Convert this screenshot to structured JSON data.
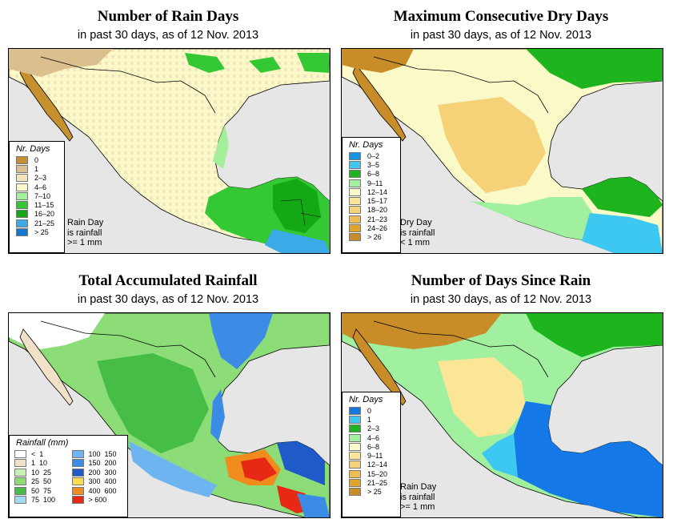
{
  "panels": [
    {
      "id": "rain_days",
      "title": "Number of Rain Days",
      "subtitle": "in past 30 days, as of  12 Nov. 2013",
      "legend_title": "Nr. Days",
      "legend": [
        {
          "label": "0",
          "color": "#c6902e"
        },
        {
          "label": "1",
          "color": "#dcbf8e"
        },
        {
          "label": "2–3",
          "color": "#f4e4be"
        },
        {
          "label": "4–6",
          "color": "#fafac8"
        },
        {
          "label": "7–10",
          "color": "#a4f09a"
        },
        {
          "label": "11–15",
          "color": "#34c834"
        },
        {
          "label": "16–20",
          "color": "#14a814"
        },
        {
          "label": "21–25",
          "color": "#3caae6"
        },
        {
          "label": "> 25",
          "color": "#1478d2"
        }
      ],
      "note": [
        "Rain Day",
        "is rainfall",
        ">= 1 mm"
      ]
    },
    {
      "id": "dry_days",
      "title": "Maximum Consecutive Dry Days",
      "subtitle": "in past 30 days, as of  12 Nov. 2013",
      "legend_title": "Nr. Days",
      "legend": [
        {
          "label": "0–2",
          "color": "#1496e6"
        },
        {
          "label": "3–5",
          "color": "#3cc8f0"
        },
        {
          "label": "6–8",
          "color": "#1eb41e"
        },
        {
          "label": "9–11",
          "color": "#a0f0a0"
        },
        {
          "label": "12–14",
          "color": "#fafac8"
        },
        {
          "label": "15–17",
          "color": "#fae696"
        },
        {
          "label": "18–20",
          "color": "#f5d278"
        },
        {
          "label": "21–23",
          "color": "#f0be50"
        },
        {
          "label": "24–26",
          "color": "#e1a528"
        },
        {
          "label": "> 26",
          "color": "#c88c28"
        }
      ],
      "note": [
        "Dry Day",
        "is rainfall",
        "< 1 mm"
      ]
    },
    {
      "id": "total_rainfall",
      "title": "Total Accumulated Rainfall",
      "subtitle": "in past 30 days, as of  12 Nov. 2013",
      "legend_title": "Rainfall (mm)",
      "legend_left": [
        {
          "label": "<  1",
          "color": "#ffffff"
        },
        {
          "label": "1  10",
          "color": "#f0e1c8"
        },
        {
          "label": "10  25",
          "color": "#c8f0b4"
        },
        {
          "label": "25  50",
          "color": "#8cdc78"
        },
        {
          "label": "50  75",
          "color": "#46be46"
        },
        {
          "label": "75  100",
          "color": "#a0dcf0"
        }
      ],
      "legend_right": [
        {
          "label": "100  150",
          "color": "#6eb4f0"
        },
        {
          "label": "150  200",
          "color": "#3c8ce6"
        },
        {
          "label": "200  300",
          "color": "#1e5ac8"
        },
        {
          "label": "300  400",
          "color": "#fadc50"
        },
        {
          "label": "400  600",
          "color": "#f08c1e"
        },
        {
          "label": "> 600",
          "color": "#e62814"
        }
      ]
    },
    {
      "id": "days_since_rain",
      "title": "Number of Days Since Rain",
      "subtitle": "in past 30 days, as of  12 Nov. 2013",
      "legend_title": "Nr. Days",
      "legend": [
        {
          "label": "0",
          "color": "#1478e6"
        },
        {
          "label": "1",
          "color": "#3cc8f0"
        },
        {
          "label": "2–3",
          "color": "#1eb41e"
        },
        {
          "label": "4–6",
          "color": "#a0f0a0"
        },
        {
          "label": "6–8",
          "color": "#fafac8"
        },
        {
          "label": "9–11",
          "color": "#fae696"
        },
        {
          "label": "12–14",
          "color": "#f5d278"
        },
        {
          "label": "15–20",
          "color": "#f0be50"
        },
        {
          "label": "21–25",
          "color": "#e1a528"
        },
        {
          "label": "> 25",
          "color": "#c88c28"
        }
      ],
      "note": [
        "Rain Day",
        "is rainfall",
        ">= 1 mm"
      ]
    }
  ],
  "colors": {
    "ocean": "#e6e6e6",
    "border": "#000000"
  }
}
